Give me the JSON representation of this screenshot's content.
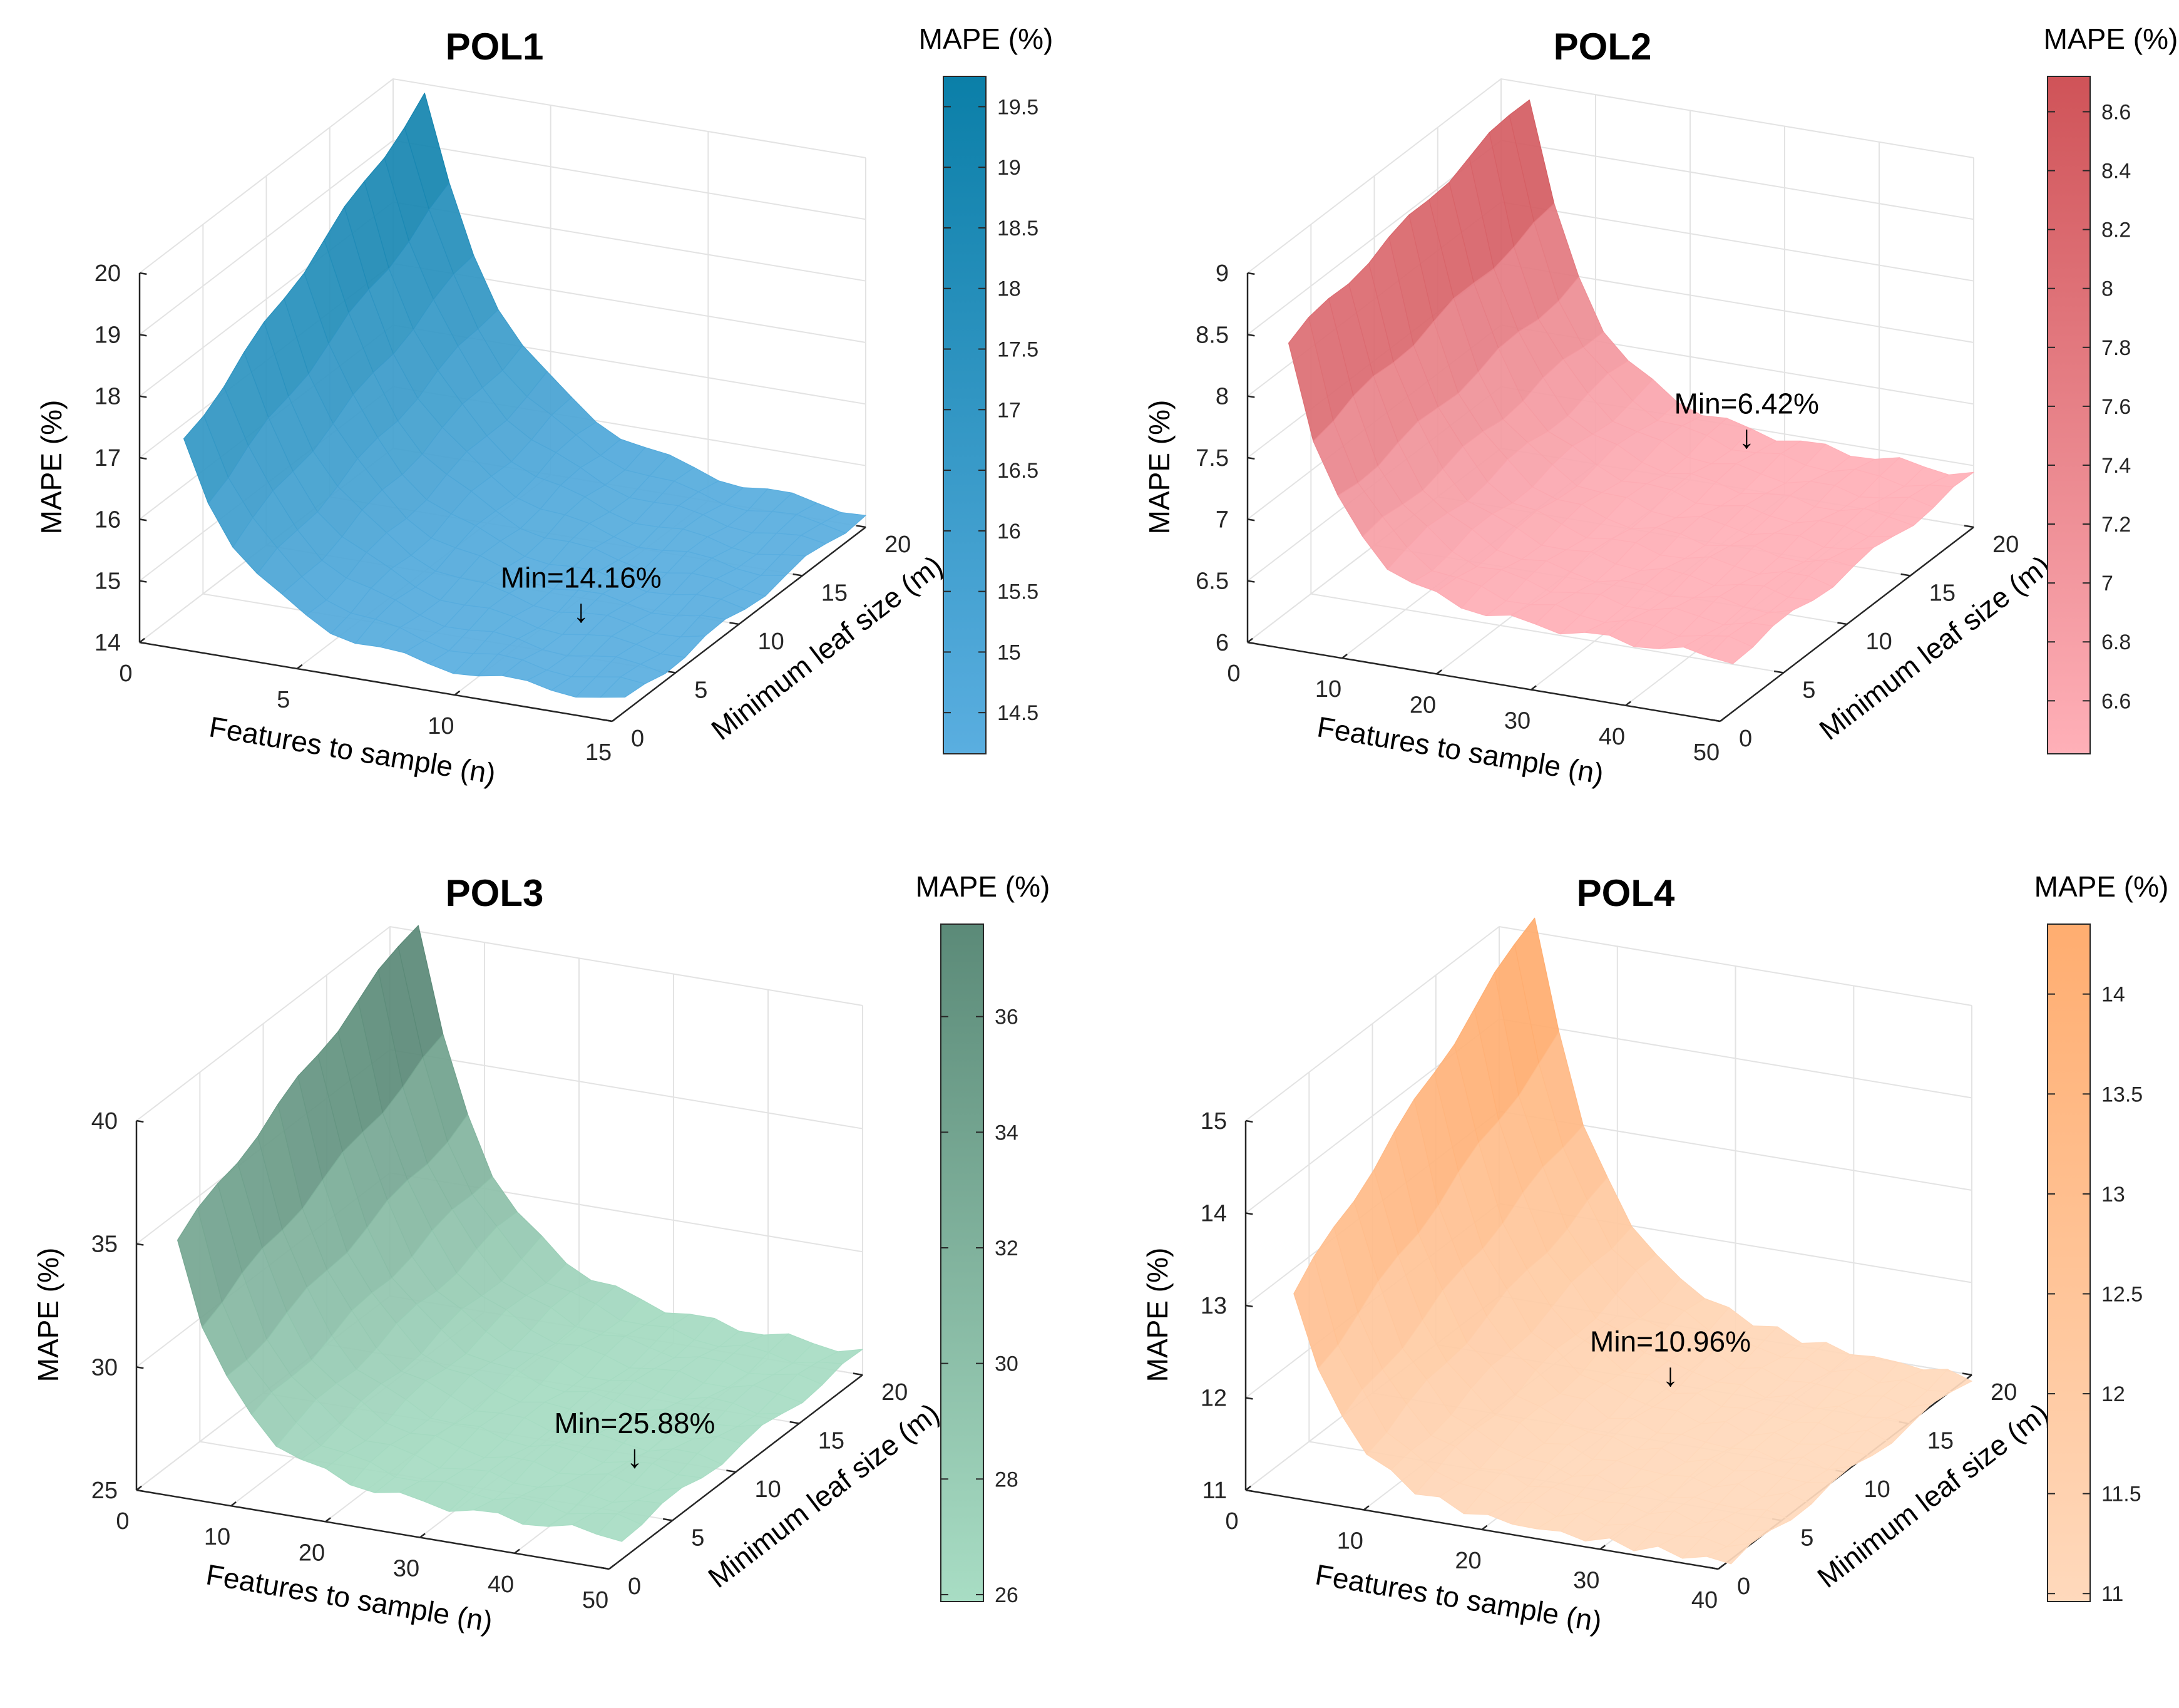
{
  "figure": {
    "description_title": ""
  },
  "chart_data": [
    {
      "type": "surface",
      "title": "POL1",
      "xlabel": "Features to sample (n)",
      "ylabel": "Minimum leaf size (m)",
      "zlabel": "MAPE (%)",
      "xlim": [
        0,
        15
      ],
      "ylim": [
        0,
        20
      ],
      "zlim": [
        14,
        20
      ],
      "x_ticks": [
        "0",
        "5",
        "10",
        "15"
      ],
      "y_ticks": [
        "0",
        "5",
        "10",
        "15",
        "20"
      ],
      "z_ticks": [
        "14",
        "15",
        "16",
        "17",
        "18",
        "19",
        "20"
      ],
      "colorbar": {
        "title": "MAPE (%)",
        "ticks": [
          "14.5",
          "15",
          "15.5",
          "16",
          "16.5",
          "17",
          "17.5",
          "18",
          "18.5",
          "19",
          "19.5"
        ],
        "range": [
          14.16,
          19.75
        ],
        "color_low": "#5aaee0",
        "color_high": "#0b7fa8"
      },
      "surface": {
        "n_range": [
          1,
          15
        ],
        "m_range": [
          1,
          20
        ],
        "z_min": 14.16,
        "z_at_n1": 17.2,
        "z_at_n1_m20": 19.8,
        "decay": 0.45,
        "m_slope": 0.12
      },
      "min_annotation": {
        "label": "Min=14.16%",
        "arrow": "↓",
        "n": 12,
        "m": 5,
        "z": 14.16
      }
    },
    {
      "type": "surface",
      "title": "POL2",
      "xlabel": "Features to sample (n)",
      "ylabel": "Minimum leaf size (m)",
      "zlabel": "MAPE (%)",
      "xlim": [
        0,
        50
      ],
      "ylim": [
        0,
        20
      ],
      "zlim": [
        6,
        9
      ],
      "x_ticks": [
        "0",
        "10",
        "20",
        "30",
        "40",
        "50"
      ],
      "y_ticks": [
        "0",
        "5",
        "10",
        "15",
        "20"
      ],
      "z_ticks": [
        "6",
        "6.5",
        "7",
        "7.5",
        "8",
        "8.5",
        "9"
      ],
      "colorbar": {
        "title": "MAPE (%)",
        "ticks": [
          "6.6",
          "6.8",
          "7",
          "7.2",
          "7.4",
          "7.6",
          "7.8",
          "8",
          "8.2",
          "8.4",
          "8.6"
        ],
        "range": [
          6.42,
          8.72
        ],
        "color_low": "#ffb0b8",
        "color_high": "#cf5358"
      },
      "surface": {
        "n_range": [
          3,
          50
        ],
        "m_range": [
          1,
          20
        ],
        "z_min": 6.42,
        "z_at_n1": 8.4,
        "z_at_n1_m20": 8.9,
        "decay": 0.18,
        "m_slope": 0.03
      },
      "min_annotation": {
        "label": "Min=6.42%",
        "arrow": "↓",
        "n": 30,
        "m": 17,
        "z": 6.42
      }
    },
    {
      "type": "surface",
      "title": "POL3",
      "xlabel": "Features to sample (n)",
      "ylabel": "Minimum leaf size (m)",
      "zlabel": "MAPE (%)",
      "xlim": [
        0,
        50
      ],
      "ylim": [
        0,
        20
      ],
      "zlim": [
        25,
        40
      ],
      "x_ticks": [
        "0",
        "10",
        "20",
        "30",
        "40",
        "50"
      ],
      "y_ticks": [
        "0",
        "5",
        "10",
        "15",
        "20"
      ],
      "z_ticks": [
        "25",
        "30",
        "35",
        "40"
      ],
      "colorbar": {
        "title": "MAPE (%)",
        "ticks": [
          "26",
          "28",
          "30",
          "32",
          "34",
          "36"
        ],
        "range": [
          25.88,
          37.6
        ],
        "color_low": "#a8ddc4",
        "color_high": "#5b8a78"
      },
      "surface": {
        "n_range": [
          3,
          50
        ],
        "m_range": [
          1,
          20
        ],
        "z_min": 25.88,
        "z_at_n1": 35.0,
        "z_at_n1_m20": 40.4,
        "decay": 0.17,
        "m_slope": 0.18
      },
      "min_annotation": {
        "label": "Min=25.88%",
        "arrow": "↓",
        "n": 46,
        "m": 5,
        "z": 25.88
      }
    },
    {
      "type": "surface",
      "title": "POL4",
      "xlabel": "Features to sample (n)",
      "ylabel": "Minimum leaf size (m)",
      "zlabel": "MAPE (%)",
      "xlim": [
        0,
        40
      ],
      "ylim": [
        0,
        20
      ],
      "zlim": [
        11,
        15
      ],
      "x_ticks": [
        "0",
        "10",
        "20",
        "30",
        "40"
      ],
      "y_ticks": [
        "0",
        "5",
        "10",
        "15",
        "20"
      ],
      "z_ticks": [
        "11",
        "12",
        "13",
        "14",
        "15"
      ],
      "colorbar": {
        "title": "MAPE (%)",
        "ticks": [
          "11",
          "11.5",
          "12",
          "12.5",
          "13",
          "13.5",
          "14"
        ],
        "range": [
          10.96,
          14.35
        ],
        "color_low": "#ffd9bc",
        "color_high": "#ffad70"
      },
      "surface": {
        "n_range": [
          3,
          40
        ],
        "m_range": [
          1,
          20
        ],
        "z_min": 10.96,
        "z_at_n1": 13.1,
        "z_at_n1_m20": 15.2,
        "decay": 0.22,
        "m_slope": 0.1
      },
      "min_annotation": {
        "label": "Min=10.96%",
        "arrow": "↓",
        "n": 22,
        "m": 13,
        "z": 10.96
      }
    }
  ]
}
